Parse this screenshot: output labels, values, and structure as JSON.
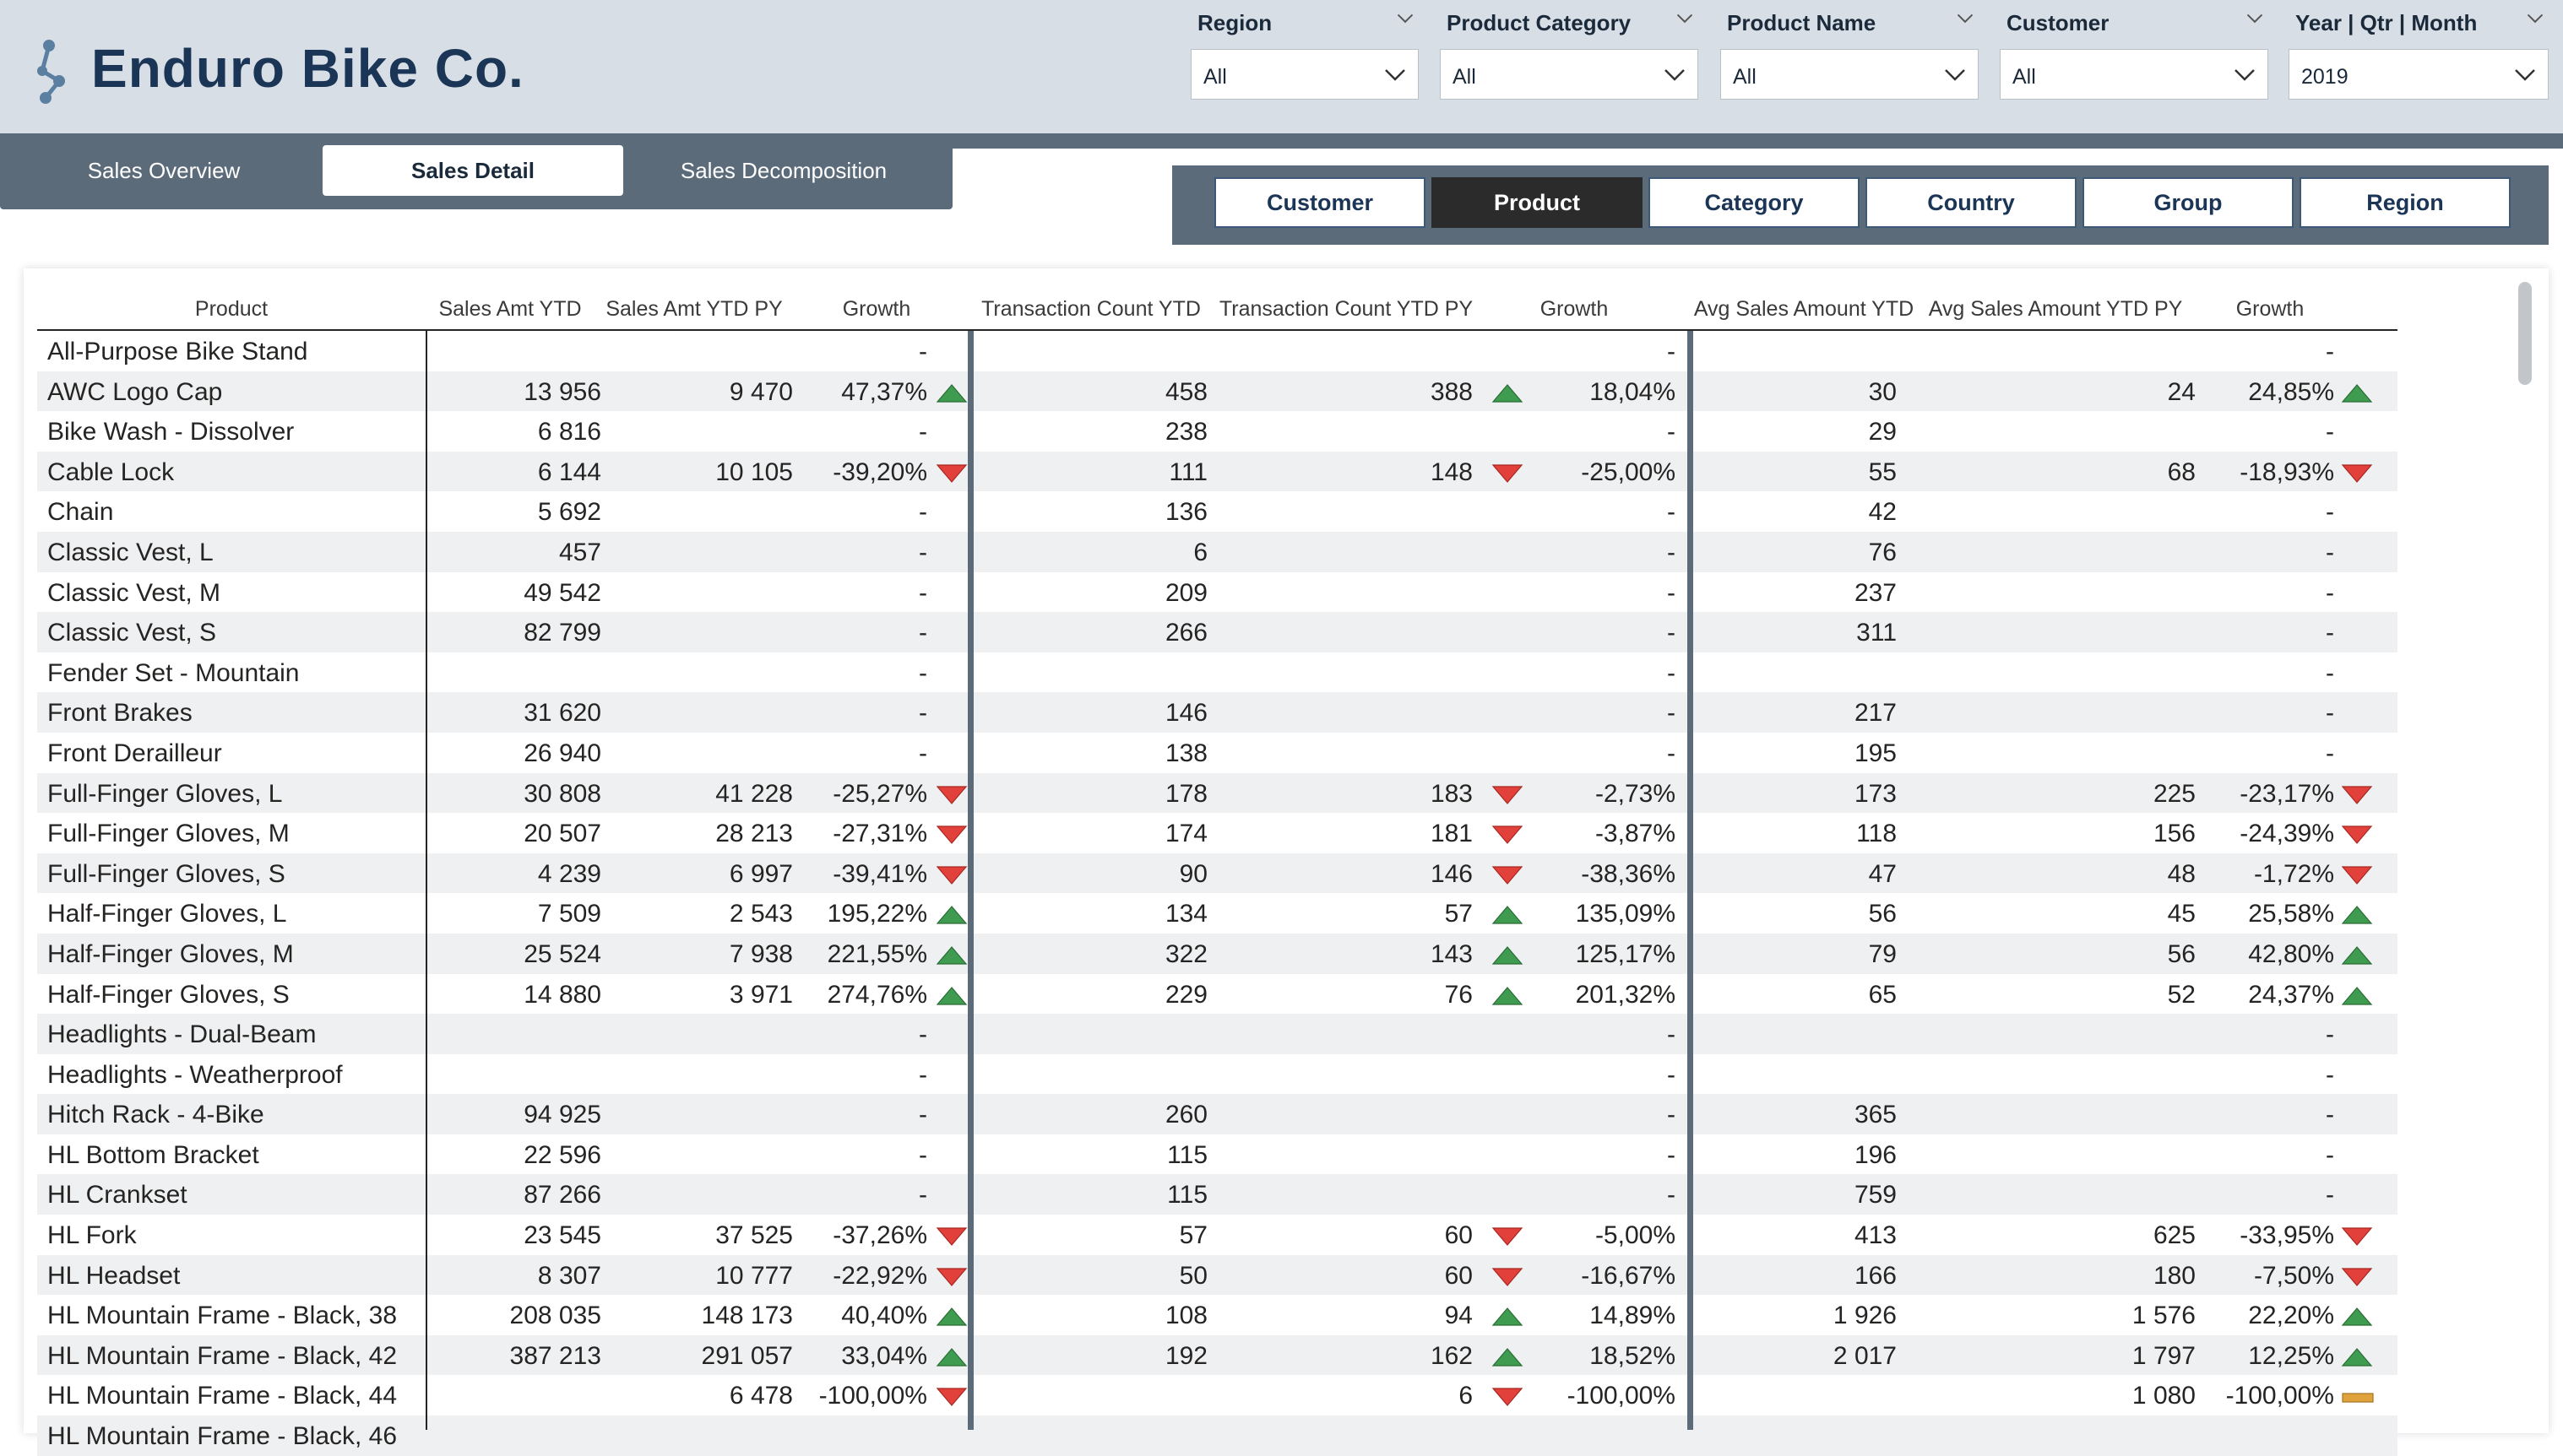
{
  "app": {
    "brand": "Enduro Bike Co."
  },
  "icons": {
    "logo": "molecule-logo-icon",
    "dropdown": "chevron-down-icon",
    "up": "triangle-up-icon",
    "down": "triangle-down-icon",
    "flat": "bar-neutral-icon"
  },
  "colors": {
    "header_bg": "#d8dee5",
    "bar_bg": "#5c6b7a",
    "brand": "#1b3556",
    "up": "#3e9b4f",
    "down": "#e2413b",
    "flat": "#e0a23c"
  },
  "filters": [
    {
      "title": "Region",
      "value": "All"
    },
    {
      "title": "Product Category",
      "value": "All"
    },
    {
      "title": "Product Name",
      "value": "All"
    },
    {
      "title": "Customer",
      "value": "All"
    },
    {
      "title": "Year | Qtr | Month",
      "value": "2019"
    }
  ],
  "tabs": [
    {
      "label": "Sales Overview",
      "active": false
    },
    {
      "label": "Sales Detail",
      "active": true
    },
    {
      "label": "Sales Decomposition",
      "active": false
    }
  ],
  "view_toggles": [
    {
      "label": "Customer",
      "active": false
    },
    {
      "label": "Product",
      "active": true
    },
    {
      "label": "Category",
      "active": false
    },
    {
      "label": "Country",
      "active": false
    },
    {
      "label": "Group",
      "active": false
    },
    {
      "label": "Region",
      "active": false
    }
  ],
  "table": {
    "columns": [
      "Product",
      "Sales Amt YTD",
      "Sales Amt YTD PY",
      "Growth",
      "Transaction Count YTD",
      "Transaction Count YTD PY",
      "Growth",
      "Avg Sales Amount YTD",
      "Avg Sales Amount YTD PY",
      "Growth"
    ],
    "rows": [
      [
        "All-Purpose Bike Stand",
        "",
        "",
        "-",
        "",
        "",
        "-",
        "",
        "",
        "-"
      ],
      [
        "AWC Logo Cap",
        "13 956",
        "9 470",
        "47,37%",
        "458",
        "388",
        "18,04%",
        "30",
        "24",
        "24,85%"
      ],
      [
        "Bike Wash - Dissolver",
        "6 816",
        "",
        "-",
        "238",
        "",
        "-",
        "29",
        "",
        "-"
      ],
      [
        "Cable Lock",
        "6 144",
        "10 105",
        "-39,20%",
        "111",
        "148",
        "-25,00%",
        "55",
        "68",
        "-18,93%"
      ],
      [
        "Chain",
        "5 692",
        "",
        "-",
        "136",
        "",
        "-",
        "42",
        "",
        "-"
      ],
      [
        "Classic Vest, L",
        "457",
        "",
        "-",
        "6",
        "",
        "-",
        "76",
        "",
        "-"
      ],
      [
        "Classic Vest, M",
        "49 542",
        "",
        "-",
        "209",
        "",
        "-",
        "237",
        "",
        "-"
      ],
      [
        "Classic Vest, S",
        "82 799",
        "",
        "-",
        "266",
        "",
        "-",
        "311",
        "",
        "-"
      ],
      [
        "Fender Set - Mountain",
        "",
        "",
        "-",
        "",
        "",
        "-",
        "",
        "",
        "-"
      ],
      [
        "Front Brakes",
        "31 620",
        "",
        "-",
        "146",
        "",
        "-",
        "217",
        "",
        "-"
      ],
      [
        "Front Derailleur",
        "26 940",
        "",
        "-",
        "138",
        "",
        "-",
        "195",
        "",
        "-"
      ],
      [
        "Full-Finger Gloves, L",
        "30 808",
        "41 228",
        "-25,27%",
        "178",
        "183",
        "-2,73%",
        "173",
        "225",
        "-23,17%"
      ],
      [
        "Full-Finger Gloves, M",
        "20 507",
        "28 213",
        "-27,31%",
        "174",
        "181",
        "-3,87%",
        "118",
        "156",
        "-24,39%"
      ],
      [
        "Full-Finger Gloves, S",
        "4 239",
        "6 997",
        "-39,41%",
        "90",
        "146",
        "-38,36%",
        "47",
        "48",
        "-1,72%"
      ],
      [
        "Half-Finger Gloves, L",
        "7 509",
        "2 543",
        "195,22%",
        "134",
        "57",
        "135,09%",
        "56",
        "45",
        "25,58%"
      ],
      [
        "Half-Finger Gloves, M",
        "25 524",
        "7 938",
        "221,55%",
        "322",
        "143",
        "125,17%",
        "79",
        "56",
        "42,80%"
      ],
      [
        "Half-Finger Gloves, S",
        "14 880",
        "3 971",
        "274,76%",
        "229",
        "76",
        "201,32%",
        "65",
        "52",
        "24,37%"
      ],
      [
        "Headlights - Dual-Beam",
        "",
        "",
        "-",
        "",
        "",
        "-",
        "",
        "",
        "-"
      ],
      [
        "Headlights - Weatherproof",
        "",
        "",
        "-",
        "",
        "",
        "-",
        "",
        "",
        "-"
      ],
      [
        "Hitch Rack - 4-Bike",
        "94 925",
        "",
        "-",
        "260",
        "",
        "-",
        "365",
        "",
        "-"
      ],
      [
        "HL Bottom Bracket",
        "22 596",
        "",
        "-",
        "115",
        "",
        "-",
        "196",
        "",
        "-"
      ],
      [
        "HL Crankset",
        "87 266",
        "",
        "-",
        "115",
        "",
        "-",
        "759",
        "",
        "-"
      ],
      [
        "HL Fork",
        "23 545",
        "37 525",
        "-37,26%",
        "57",
        "60",
        "-5,00%",
        "413",
        "625",
        "-33,95%"
      ],
      [
        "HL Headset",
        "8 307",
        "10 777",
        "-22,92%",
        "50",
        "60",
        "-16,67%",
        "166",
        "180",
        "-7,50%"
      ],
      [
        "HL Mountain Frame - Black, 38",
        "208 035",
        "148 173",
        "40,40%",
        "108",
        "94",
        "14,89%",
        "1 926",
        "1 576",
        "22,20%"
      ],
      [
        "HL Mountain Frame - Black, 42",
        "387 213",
        "291 057",
        "33,04%",
        "192",
        "162",
        "18,52%",
        "2 017",
        "1 797",
        "12,25%"
      ],
      [
        "HL Mountain Frame - Black, 44",
        "",
        "6 478",
        "-100,00%",
        "",
        "6",
        "-100,00%",
        "",
        "1 080",
        "-100,00%"
      ],
      [
        "HL Mountain Frame - Black, 46",
        "",
        "",
        "",
        "",
        "",
        "",
        "",
        "",
        ""
      ]
    ]
  }
}
